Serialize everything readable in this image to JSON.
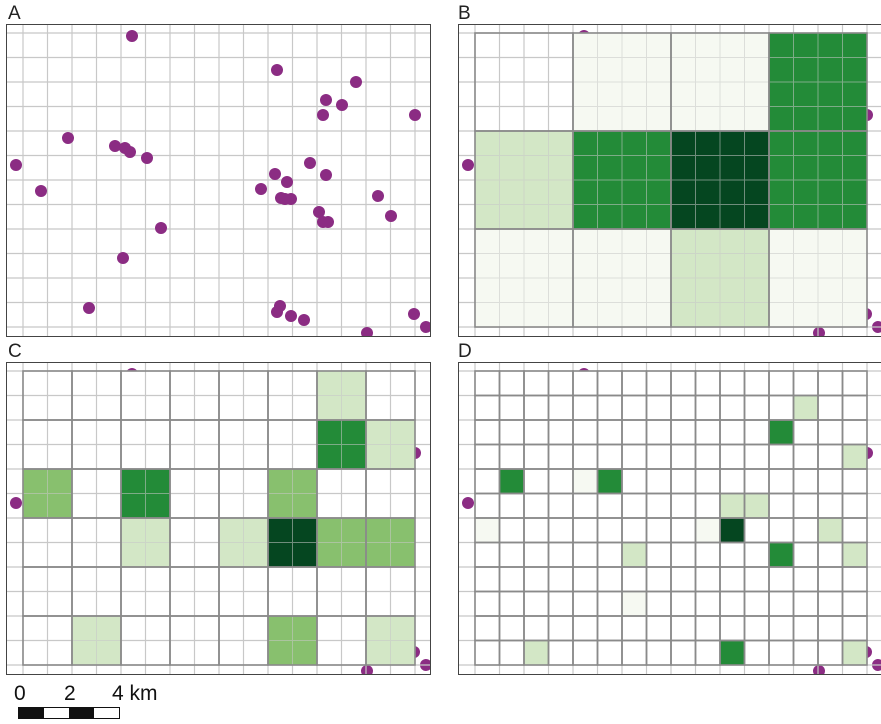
{
  "panels": [
    {
      "id": "A",
      "label": "A",
      "aggregation": "points"
    },
    {
      "id": "B",
      "label": "B",
      "aggregation": "coarse-grid"
    },
    {
      "id": "C",
      "label": "C",
      "aggregation": "medium-grid"
    },
    {
      "id": "D",
      "label": "D",
      "aggregation": "fine-grid"
    }
  ],
  "colors": {
    "points": "#8b2c83",
    "background_grid": "#c8c8c8",
    "cell_border": "#8a8a8a",
    "green_scale": [
      "#ffffff",
      "#f6f9f2",
      "#d3e7c6",
      "#88c06e",
      "#238b38",
      "#054620"
    ]
  },
  "scale_bar": {
    "ticks": [
      "0",
      "2",
      "4 km"
    ],
    "segments": [
      "black",
      "white",
      "black",
      "white"
    ]
  },
  "points_A": [
    [
      131,
      35
    ],
    [
      276,
      69
    ],
    [
      355,
      81
    ],
    [
      325,
      99
    ],
    [
      341,
      104
    ],
    [
      322,
      114
    ],
    [
      414,
      114
    ],
    [
      67,
      137
    ],
    [
      114,
      145
    ],
    [
      124,
      147
    ],
    [
      129,
      151
    ],
    [
      146,
      157
    ],
    [
      15,
      164
    ],
    [
      309,
      162
    ],
    [
      274,
      173
    ],
    [
      286,
      181
    ],
    [
      325,
      174
    ],
    [
      260,
      188
    ],
    [
      40,
      190
    ],
    [
      280,
      197
    ],
    [
      290,
      198
    ],
    [
      284,
      198
    ],
    [
      377,
      195
    ],
    [
      318,
      211
    ],
    [
      322,
      221
    ],
    [
      327,
      221
    ],
    [
      390,
      215
    ],
    [
      160,
      227
    ],
    [
      122,
      257
    ],
    [
      88,
      307
    ],
    [
      279,
      305
    ],
    [
      276,
      311
    ],
    [
      290,
      315
    ],
    [
      303,
      319
    ],
    [
      413,
      313
    ],
    [
      366,
      332
    ],
    [
      425,
      326
    ]
  ],
  "grid_B": {
    "cols": 4,
    "rows": 3,
    "values": [
      [
        0,
        1,
        1,
        4
      ],
      [
        2,
        4,
        5,
        4
      ],
      [
        1,
        1,
        2,
        1
      ]
    ]
  },
  "grid_C": {
    "cols": 8,
    "rows": 6,
    "values": [
      [
        0,
        0,
        0,
        0,
        0,
        0,
        2,
        0
      ],
      [
        0,
        0,
        0,
        0,
        0,
        0,
        4,
        2
      ],
      [
        3,
        0,
        4,
        0,
        0,
        3,
        0,
        0
      ],
      [
        0,
        0,
        2,
        0,
        2,
        5,
        3,
        3
      ],
      [
        0,
        0,
        0,
        0,
        0,
        0,
        0,
        0
      ],
      [
        0,
        2,
        0,
        0,
        0,
        3,
        0,
        2
      ]
    ]
  },
  "grid_D": {
    "cols": 16,
    "rows": 12,
    "values": [
      [
        0,
        0,
        0,
        0,
        0,
        0,
        0,
        0,
        0,
        0,
        0,
        0,
        0,
        0,
        0,
        0
      ],
      [
        0,
        0,
        0,
        0,
        0,
        0,
        0,
        0,
        0,
        0,
        0,
        0,
        0,
        2,
        0,
        0
      ],
      [
        0,
        0,
        0,
        0,
        0,
        0,
        0,
        0,
        0,
        0,
        0,
        0,
        4,
        0,
        0,
        0
      ],
      [
        0,
        0,
        0,
        0,
        0,
        0,
        0,
        0,
        0,
        0,
        0,
        0,
        0,
        0,
        0,
        2
      ],
      [
        0,
        4,
        0,
        0,
        1,
        4,
        0,
        0,
        0,
        0,
        0,
        0,
        0,
        0,
        0,
        0
      ],
      [
        0,
        0,
        0,
        0,
        0,
        0,
        0,
        0,
        0,
        0,
        2,
        2,
        0,
        0,
        0,
        0
      ],
      [
        1,
        0,
        0,
        0,
        0,
        0,
        0,
        0,
        0,
        1,
        5,
        0,
        0,
        0,
        2,
        0
      ],
      [
        0,
        0,
        0,
        0,
        0,
        0,
        2,
        0,
        0,
        0,
        0,
        0,
        4,
        0,
        0,
        2
      ],
      [
        0,
        0,
        0,
        0,
        0,
        0,
        0,
        0,
        0,
        0,
        0,
        0,
        0,
        0,
        0,
        0
      ],
      [
        0,
        0,
        0,
        0,
        0,
        0,
        1,
        0,
        0,
        0,
        0,
        0,
        0,
        0,
        0,
        0
      ],
      [
        0,
        0,
        0,
        0,
        0,
        0,
        0,
        0,
        0,
        0,
        0,
        0,
        0,
        0,
        0,
        0
      ],
      [
        0,
        0,
        2,
        0,
        0,
        0,
        0,
        0,
        0,
        0,
        4,
        0,
        0,
        0,
        0,
        2
      ]
    ]
  }
}
